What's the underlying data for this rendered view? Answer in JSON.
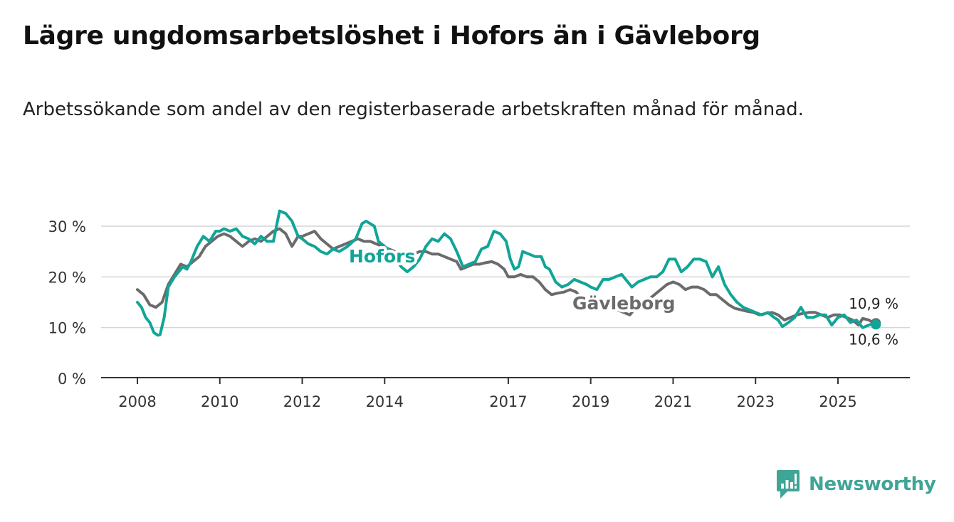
{
  "header": {
    "title": "Lägre ungdomsarbetslöshet i Hofors än i Gävleborg",
    "subtitle": "Arbetssökande som andel av den registerbaserade arbetskraften månad för månad."
  },
  "brand": {
    "name": "Newsworthy",
    "color": "#3fa596"
  },
  "chart_data": {
    "type": "line",
    "title": "Lägre ungdomsarbetslöshet i Hofors än i Gävleborg",
    "xlabel": "",
    "ylabel": "",
    "xlim": [
      2008,
      2026
    ],
    "ylim": [
      0,
      35
    ],
    "yticks": [
      0,
      10,
      20,
      30
    ],
    "ytick_labels": [
      "0 %",
      "10 %",
      "20 %",
      "30 %"
    ],
    "xticks": [
      2008,
      2010,
      2012,
      2014,
      2017,
      2019,
      2021,
      2023,
      2025
    ],
    "xtick_labels": [
      "2008",
      "2010",
      "2012",
      "2014",
      "2017",
      "2019",
      "2021",
      "2023",
      "2025"
    ],
    "grid": true,
    "series": [
      {
        "name": "Hofors",
        "color": "#10a597",
        "label": "Hofors",
        "end_label": "10,6 %",
        "points": [
          [
            2008.0,
            15.0
          ],
          [
            2008.1,
            14.0
          ],
          [
            2008.2,
            12.0
          ],
          [
            2008.3,
            11.0
          ],
          [
            2008.4,
            9.0
          ],
          [
            2008.5,
            8.5
          ],
          [
            2008.55,
            8.6
          ],
          [
            2008.65,
            12.0
          ],
          [
            2008.75,
            18.0
          ],
          [
            2008.9,
            20.0
          ],
          [
            2009.0,
            21.0
          ],
          [
            2009.1,
            22.0
          ],
          [
            2009.2,
            21.5
          ],
          [
            2009.3,
            23.0
          ],
          [
            2009.45,
            26.0
          ],
          [
            2009.6,
            28.0
          ],
          [
            2009.75,
            27.0
          ],
          [
            2009.9,
            29.0
          ],
          [
            2010.0,
            29.0
          ],
          [
            2010.1,
            29.5
          ],
          [
            2010.25,
            29.0
          ],
          [
            2010.4,
            29.5
          ],
          [
            2010.55,
            28.0
          ],
          [
            2010.7,
            27.5
          ],
          [
            2010.85,
            26.5
          ],
          [
            2011.0,
            28.0
          ],
          [
            2011.15,
            27.0
          ],
          [
            2011.3,
            27.0
          ],
          [
            2011.45,
            33.0
          ],
          [
            2011.6,
            32.5
          ],
          [
            2011.75,
            31.0
          ],
          [
            2011.9,
            28.0
          ],
          [
            2012.0,
            27.5
          ],
          [
            2012.15,
            26.5
          ],
          [
            2012.3,
            26.0
          ],
          [
            2012.45,
            25.0
          ],
          [
            2012.6,
            24.5
          ],
          [
            2012.75,
            25.5
          ],
          [
            2012.9,
            25.0
          ],
          [
            2013.1,
            26.0
          ],
          [
            2013.3,
            27.5
          ],
          [
            2013.45,
            30.5
          ],
          [
            2013.55,
            31.0
          ],
          [
            2013.65,
            30.5
          ],
          [
            2013.75,
            30.0
          ],
          [
            2013.85,
            27.0
          ],
          [
            2014.0,
            26.0
          ],
          [
            2014.15,
            25.0
          ],
          [
            2014.25,
            24.0
          ],
          [
            2014.4,
            22.0
          ],
          [
            2014.55,
            21.0
          ],
          [
            2014.7,
            22.0
          ],
          [
            2014.85,
            23.5
          ],
          [
            2015.0,
            26.0
          ],
          [
            2015.15,
            27.5
          ],
          [
            2015.3,
            27.0
          ],
          [
            2015.45,
            28.5
          ],
          [
            2015.6,
            27.5
          ],
          [
            2015.75,
            25.0
          ],
          [
            2015.9,
            22.0
          ],
          [
            2016.05,
            22.5
          ],
          [
            2016.2,
            23.0
          ],
          [
            2016.35,
            25.5
          ],
          [
            2016.5,
            26.0
          ],
          [
            2016.65,
            29.0
          ],
          [
            2016.8,
            28.5
          ],
          [
            2016.95,
            27.0
          ],
          [
            2017.05,
            23.5
          ],
          [
            2017.15,
            21.5
          ],
          [
            2017.25,
            22.0
          ],
          [
            2017.35,
            25.0
          ],
          [
            2017.5,
            24.5
          ],
          [
            2017.65,
            24.0
          ],
          [
            2017.8,
            24.0
          ],
          [
            2017.9,
            22.0
          ],
          [
            2018.0,
            21.5
          ],
          [
            2018.15,
            19.0
          ],
          [
            2018.3,
            18.0
          ],
          [
            2018.45,
            18.5
          ],
          [
            2018.6,
            19.5
          ],
          [
            2018.75,
            19.0
          ],
          [
            2018.9,
            18.5
          ],
          [
            2019.0,
            18.0
          ],
          [
            2019.15,
            17.5
          ],
          [
            2019.3,
            19.5
          ],
          [
            2019.45,
            19.5
          ],
          [
            2019.6,
            20.0
          ],
          [
            2019.75,
            20.5
          ],
          [
            2019.9,
            19.0
          ],
          [
            2020.0,
            18.0
          ],
          [
            2020.15,
            19.0
          ],
          [
            2020.3,
            19.5
          ],
          [
            2020.45,
            20.0
          ],
          [
            2020.6,
            20.0
          ],
          [
            2020.75,
            21.0
          ],
          [
            2020.9,
            23.5
          ],
          [
            2021.05,
            23.5
          ],
          [
            2021.2,
            21.0
          ],
          [
            2021.35,
            22.0
          ],
          [
            2021.5,
            23.5
          ],
          [
            2021.65,
            23.5
          ],
          [
            2021.8,
            23.0
          ],
          [
            2021.95,
            20.0
          ],
          [
            2022.1,
            22.0
          ],
          [
            2022.25,
            18.5
          ],
          [
            2022.4,
            16.5
          ],
          [
            2022.55,
            15.0
          ],
          [
            2022.7,
            14.0
          ],
          [
            2022.85,
            13.5
          ],
          [
            2023.0,
            13.0
          ],
          [
            2023.15,
            12.5
          ],
          [
            2023.3,
            13.0
          ],
          [
            2023.45,
            12.0
          ],
          [
            2023.55,
            11.5
          ],
          [
            2023.65,
            10.2
          ],
          [
            2023.8,
            11.0
          ],
          [
            2023.95,
            12.0
          ],
          [
            2024.1,
            14.0
          ],
          [
            2024.25,
            12.0
          ],
          [
            2024.4,
            12.0
          ],
          [
            2024.55,
            12.5
          ],
          [
            2024.7,
            12.5
          ],
          [
            2024.85,
            10.5
          ],
          [
            2025.0,
            12.0
          ],
          [
            2025.15,
            12.5
          ],
          [
            2025.3,
            11.0
          ],
          [
            2025.45,
            11.5
          ],
          [
            2025.6,
            10.0
          ],
          [
            2025.75,
            10.5
          ],
          [
            2025.85,
            10.8
          ],
          [
            2025.92,
            10.6
          ]
        ]
      },
      {
        "name": "Gävleborg",
        "color": "#6b6b6e",
        "label": "Gävleborg",
        "end_label": "10,9 %",
        "points": [
          [
            2008.0,
            17.5
          ],
          [
            2008.15,
            16.5
          ],
          [
            2008.3,
            14.5
          ],
          [
            2008.45,
            14.0
          ],
          [
            2008.6,
            15.0
          ],
          [
            2008.75,
            18.5
          ],
          [
            2008.9,
            20.5
          ],
          [
            2009.05,
            22.5
          ],
          [
            2009.2,
            22.0
          ],
          [
            2009.35,
            23.0
          ],
          [
            2009.5,
            24.0
          ],
          [
            2009.65,
            26.0
          ],
          [
            2009.8,
            27.0
          ],
          [
            2009.95,
            28.0
          ],
          [
            2010.1,
            28.5
          ],
          [
            2010.25,
            28.0
          ],
          [
            2010.4,
            27.0
          ],
          [
            2010.55,
            26.0
          ],
          [
            2010.7,
            27.0
          ],
          [
            2010.85,
            27.5
          ],
          [
            2011.0,
            27.0
          ],
          [
            2011.15,
            28.0
          ],
          [
            2011.3,
            29.0
          ],
          [
            2011.45,
            29.5
          ],
          [
            2011.6,
            28.5
          ],
          [
            2011.75,
            26.0
          ],
          [
            2011.9,
            28.0
          ],
          [
            2012.0,
            28.0
          ],
          [
            2012.15,
            28.5
          ],
          [
            2012.3,
            29.0
          ],
          [
            2012.45,
            27.5
          ],
          [
            2012.6,
            26.5
          ],
          [
            2012.75,
            25.5
          ],
          [
            2012.9,
            26.0
          ],
          [
            2013.05,
            26.5
          ],
          [
            2013.2,
            27.0
          ],
          [
            2013.35,
            27.5
          ],
          [
            2013.5,
            27.0
          ],
          [
            2013.65,
            27.0
          ],
          [
            2013.8,
            26.5
          ],
          [
            2013.95,
            26.0
          ],
          [
            2014.1,
            25.5
          ],
          [
            2014.25,
            25.0
          ],
          [
            2014.4,
            24.5
          ],
          [
            2014.55,
            24.0
          ],
          [
            2014.7,
            24.5
          ],
          [
            2014.85,
            25.0
          ],
          [
            2015.0,
            25.0
          ],
          [
            2015.15,
            24.5
          ],
          [
            2015.3,
            24.5
          ],
          [
            2015.45,
            24.0
          ],
          [
            2015.6,
            23.5
          ],
          [
            2015.75,
            23.0
          ],
          [
            2015.85,
            21.5
          ],
          [
            2016.0,
            22.0
          ],
          [
            2016.15,
            22.5
          ],
          [
            2016.3,
            22.5
          ],
          [
            2016.45,
            22.8
          ],
          [
            2016.6,
            23.0
          ],
          [
            2016.75,
            22.5
          ],
          [
            2016.9,
            21.5
          ],
          [
            2017.0,
            20.0
          ],
          [
            2017.15,
            20.0
          ],
          [
            2017.3,
            20.5
          ],
          [
            2017.45,
            20.0
          ],
          [
            2017.6,
            20.0
          ],
          [
            2017.75,
            19.0
          ],
          [
            2017.9,
            17.5
          ],
          [
            2018.05,
            16.5
          ],
          [
            2018.2,
            16.8
          ],
          [
            2018.35,
            17.0
          ],
          [
            2018.5,
            17.5
          ],
          [
            2018.65,
            17.0
          ],
          [
            2018.8,
            15.5
          ],
          [
            2018.95,
            14.0
          ],
          [
            2019.05,
            13.5
          ],
          [
            2019.2,
            14.0
          ],
          [
            2019.35,
            14.5
          ],
          [
            2019.5,
            14.0
          ],
          [
            2019.65,
            13.5
          ],
          [
            2019.8,
            13.0
          ],
          [
            2019.95,
            12.5
          ],
          [
            2020.1,
            14.0
          ],
          [
            2020.25,
            15.0
          ],
          [
            2020.4,
            15.5
          ],
          [
            2020.55,
            16.5
          ],
          [
            2020.7,
            17.5
          ],
          [
            2020.85,
            18.5
          ],
          [
            2021.0,
            19.0
          ],
          [
            2021.15,
            18.5
          ],
          [
            2021.3,
            17.5
          ],
          [
            2021.45,
            18.0
          ],
          [
            2021.6,
            18.0
          ],
          [
            2021.75,
            17.5
          ],
          [
            2021.9,
            16.5
          ],
          [
            2022.05,
            16.5
          ],
          [
            2022.2,
            15.5
          ],
          [
            2022.35,
            14.5
          ],
          [
            2022.5,
            13.8
          ],
          [
            2022.65,
            13.5
          ],
          [
            2022.8,
            13.2
          ],
          [
            2022.95,
            13.0
          ],
          [
            2023.1,
            12.5
          ],
          [
            2023.25,
            12.8
          ],
          [
            2023.4,
            13.0
          ],
          [
            2023.55,
            12.5
          ],
          [
            2023.7,
            11.5
          ],
          [
            2023.85,
            12.0
          ],
          [
            2024.0,
            12.5
          ],
          [
            2024.15,
            12.8
          ],
          [
            2024.3,
            13.0
          ],
          [
            2024.45,
            13.0
          ],
          [
            2024.6,
            12.5
          ],
          [
            2024.75,
            12.0
          ],
          [
            2024.9,
            12.5
          ],
          [
            2025.05,
            12.5
          ],
          [
            2025.2,
            12.0
          ],
          [
            2025.35,
            11.5
          ],
          [
            2025.5,
            10.5
          ],
          [
            2025.6,
            11.8
          ],
          [
            2025.75,
            11.5
          ],
          [
            2025.85,
            11.0
          ],
          [
            2025.92,
            10.9
          ]
        ]
      }
    ]
  }
}
